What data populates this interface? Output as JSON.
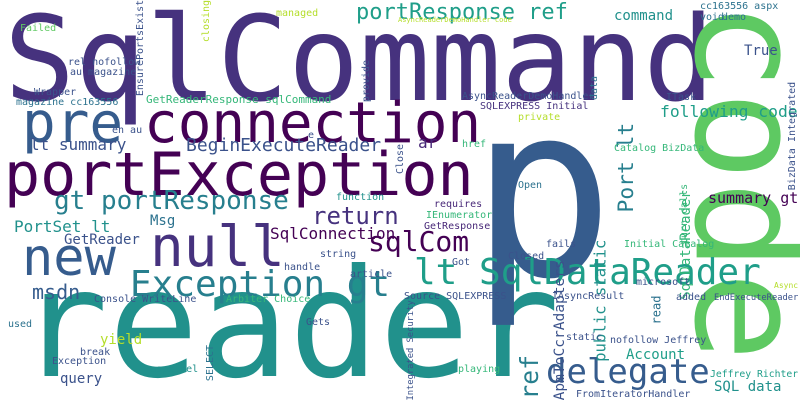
{
  "words": [
    {
      "text": "SqlCommand",
      "color": "#46327e"
    },
    {
      "text": "reader",
      "color": "#21918c"
    },
    {
      "text": "p",
      "color": "#365c8d"
    },
    {
      "text": "code",
      "color": "#5ec962"
    },
    {
      "text": "portException",
      "color": "#440154"
    },
    {
      "text": "connection",
      "color": "#440154"
    },
    {
      "text": "pre",
      "color": "#365c8d"
    },
    {
      "text": "null",
      "color": "#46327e"
    },
    {
      "text": "new",
      "color": "#365c8d"
    },
    {
      "text": "lt SqlDataReader",
      "color": "#1f9e89"
    },
    {
      "text": "Exception gt",
      "color": "#277f8e"
    },
    {
      "text": "delegate",
      "color": "#365c8d"
    },
    {
      "text": "portResponse ref",
      "color": "#1f9e89"
    },
    {
      "text": "gt portResponse",
      "color": "#277f8e"
    },
    {
      "text": "Port lt",
      "color": "#277f8e"
    },
    {
      "text": "sqlCom",
      "color": "#440154"
    },
    {
      "text": "return",
      "color": "#46327e"
    },
    {
      "text": "ref",
      "color": "#277f8e"
    },
    {
      "text": "msdn",
      "color": "#365c8d"
    },
    {
      "text": "BeginExecuteReader",
      "color": "#3b528b"
    },
    {
      "text": "following code",
      "color": "#1f9e89"
    },
    {
      "text": "ApmToCcrAdapters",
      "color": "#3b528b"
    },
    {
      "text": "command",
      "color": "#21918c"
    },
    {
      "text": "lt summary",
      "color": "#3b528b"
    },
    {
      "text": "summary gt",
      "color": "#440154"
    },
    {
      "text": "PortSet lt",
      "color": "#21918c"
    },
    {
      "text": "SqlConnection",
      "color": "#440154"
    },
    {
      "text": "public static",
      "color": "#21918c"
    },
    {
      "text": "GetReader",
      "color": "#3b528b"
    },
    {
      "text": "Msg",
      "color": "#2c728e"
    },
    {
      "text": "ar",
      "color": "#482878"
    },
    {
      "text": "True",
      "color": "#3b528b"
    },
    {
      "text": "yield",
      "color": "#b5de2b"
    },
    {
      "text": "query",
      "color": "#3b528b"
    },
    {
      "text": "SqlDataReader",
      "color": "#35b779"
    },
    {
      "text": "Account",
      "color": "#1f9e89"
    },
    {
      "text": "SQL data",
      "color": "#21918c"
    },
    {
      "text": "read",
      "color": "#2c728e"
    },
    {
      "text": "GetReaderResponse sqlCommand",
      "color": "#35b779"
    },
    {
      "text": "Jeffrey Richter",
      "color": "#1f9e89"
    },
    {
      "text": "Integrated Security",
      "color": "#3b528b"
    },
    {
      "text": "Console WriteLine",
      "color": "#3b528b"
    },
    {
      "text": "Arbiter Choice",
      "color": "#35b779"
    },
    {
      "text": "SQLEXPRESS Initial",
      "color": "#46327e"
    },
    {
      "text": "AsyncReaderDemoHandler",
      "color": "#3b528b"
    },
    {
      "text": "Initial Catalog",
      "color": "#35b779"
    },
    {
      "text": "Catalog BizData",
      "color": "#35b779"
    },
    {
      "text": "EndExecuteReader",
      "color": "#3b528b"
    },
    {
      "text": "FromIteratorHandler",
      "color": "#3b528b"
    },
    {
      "text": "IAsyncResult",
      "color": "#3b528b"
    },
    {
      "text": "Source SQLEXPRESS",
      "color": "#3b528b"
    },
    {
      "text": "magazine cc163556",
      "color": "#2c728e"
    },
    {
      "text": "rel nofollow",
      "color": "#3b528b"
    },
    {
      "text": "au magazine",
      "color": "#3b528b"
    },
    {
      "text": "EnsurePortsExist",
      "color": "#3b528b"
    },
    {
      "text": "Wrapper",
      "color": "#3b528b"
    },
    {
      "text": "Failed",
      "color": "#5ec962"
    },
    {
      "text": "managed",
      "color": "#b5de2b"
    },
    {
      "text": "closing",
      "color": "#b5de2b"
    },
    {
      "text": "cc163556 aspx",
      "color": "#2c728e"
    },
    {
      "text": "void",
      "color": "#2c728e"
    },
    {
      "text": "demo",
      "color": "#2c728e"
    },
    {
      "text": "ITask",
      "color": "#3b528b"
    },
    {
      "text": "BizData Integrated",
      "color": "#3b528b"
    },
    {
      "text": "provide",
      "color": "#3b528b"
    },
    {
      "text": "data",
      "color": "#2c728e"
    },
    {
      "text": "private",
      "color": "#b5de2b"
    },
    {
      "text": "href",
      "color": "#35b779"
    },
    {
      "text": "Close",
      "color": "#3b528b"
    },
    {
      "text": "requires",
      "color": "#482878"
    },
    {
      "text": "function",
      "color": "#21918c"
    },
    {
      "text": "Open",
      "color": "#2c728e"
    },
    {
      "text": "turn calls",
      "color": "#35b779"
    },
    {
      "text": "microsoft",
      "color": "#3b528b"
    },
    {
      "text": "IEnumerator",
      "color": "#35b779"
    },
    {
      "text": "GetResponse",
      "color": "#482878"
    },
    {
      "text": "string",
      "color": "#3b528b"
    },
    {
      "text": "handle",
      "color": "#3b528b"
    },
    {
      "text": "Got",
      "color": "#3b528b"
    },
    {
      "text": "Closed",
      "color": "#3b528b"
    },
    {
      "text": "fails",
      "color": "#3b528b"
    },
    {
      "text": "article",
      "color": "#3b528b"
    },
    {
      "text": "Async",
      "color": "#b5de2b"
    },
    {
      "text": "added",
      "color": "#3b528b"
    },
    {
      "text": "en au",
      "color": "#3b528b"
    },
    {
      "text": "e",
      "color": "#3b528b"
    },
    {
      "text": "used",
      "color": "#2c728e"
    },
    {
      "text": "Gets",
      "color": "#3b528b"
    },
    {
      "text": "break",
      "color": "#3b528b"
    },
    {
      "text": "Exception",
      "color": "#3b528b"
    },
    {
      "text": "aspx rel",
      "color": "#21918c"
    },
    {
      "text": "SELECT",
      "color": "#2c728e"
    },
    {
      "text": "static",
      "color": "#3b528b"
    },
    {
      "text": "nofollow Jeffrey",
      "color": "#3b528b"
    },
    {
      "text": "playing",
      "color": "#35b779"
    },
    {
      "text": "AsyncReaderDemoHandler code",
      "color": "#b5de2b"
    }
  ]
}
